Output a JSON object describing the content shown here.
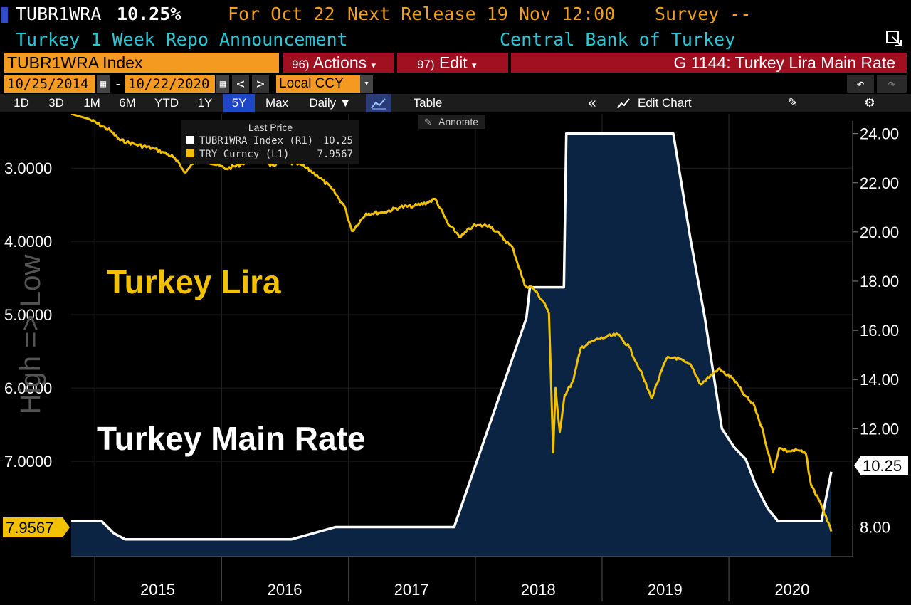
{
  "header": {
    "ticker": "TUBR1WRA",
    "price": "10.25%",
    "for_label": "For Oct 22",
    "next_release": "Next Release 19 Nov 12:00",
    "survey": "Survey --",
    "description": "Turkey 1 Week Repo Announcement",
    "source": "Central Bank of Turkey"
  },
  "command_bar": {
    "security": "TUBR1WRA Index",
    "actions_num": "96)",
    "actions": "Actions",
    "edit_num": "97)",
    "edit": "Edit",
    "graph_title": "G 1144: Turkey Lira Main Rate"
  },
  "date_bar": {
    "start": "10/25/2014",
    "dash": "-",
    "end": "10/22/2020",
    "currency": "Local CCY"
  },
  "range_bar": {
    "ranges": [
      "1D",
      "3D",
      "1M",
      "6M",
      "YTD",
      "1Y",
      "5Y",
      "Max"
    ],
    "selected": "5Y",
    "frequency": "Daily ▼",
    "table": "Table",
    "edit_chart": "Edit Chart"
  },
  "annotate": "Annotate",
  "colors": {
    "lira": "#f2c200",
    "rate": "#ffffff",
    "area": "#0c2444",
    "accent": "#f59a20",
    "command_red": "#a01020"
  },
  "chart_data": {
    "type": "line",
    "legend": {
      "title": "Last Price",
      "entries": [
        {
          "name": "TUBR1WRA Index (R1)",
          "value": "10.25"
        },
        {
          "name": "TRY Curncy (L1)",
          "value": "7.9567"
        }
      ],
      "placement": "top-left"
    },
    "annotations": [
      "Turkey Lira",
      "Turkey Main Rate"
    ],
    "left_axis_label": "High => Low",
    "left_axis": {
      "inverted": true,
      "range": [
        2.26,
        8.3
      ],
      "ticks": [
        "3.0000",
        "4.0000",
        "5.0000",
        "6.0000",
        "7.0000"
      ],
      "last_value_label": "7.9567"
    },
    "right_axis": {
      "range": [
        6.8,
        24.8
      ],
      "ticks": [
        "24.00",
        "22.00",
        "20.00",
        "18.00",
        "16.00",
        "14.00",
        "12.00",
        "8.00"
      ],
      "last_value_label": "10.25"
    },
    "x_labels": [
      "2015",
      "2016",
      "2017",
      "2018",
      "2019",
      "2020"
    ],
    "series": [
      {
        "name": "TUBR1WRA Index",
        "axis": "right",
        "style": "area-white-line",
        "points": [
          [
            "2014-10-25",
            8.25
          ],
          [
            "2015-01-20",
            8.25
          ],
          [
            "2015-02-25",
            7.75
          ],
          [
            "2015-03-30",
            7.5
          ],
          [
            "2016-07-20",
            7.5
          ],
          [
            "2016-11-24",
            8.0
          ],
          [
            "2017-11-01",
            8.0
          ],
          [
            "2018-05-28",
            16.5
          ],
          [
            "2018-06-07",
            17.75
          ],
          [
            "2018-09-13",
            17.75
          ],
          [
            "2018-09-20",
            24.0
          ],
          [
            "2019-07-25",
            24.0
          ],
          [
            "2019-09-12",
            19.75
          ],
          [
            "2019-10-24",
            16.5
          ],
          [
            "2019-12-12",
            12.0
          ],
          [
            "2020-01-16",
            11.25
          ],
          [
            "2020-02-19",
            10.75
          ],
          [
            "2020-03-17",
            9.75
          ],
          [
            "2020-04-22",
            8.75
          ],
          [
            "2020-05-21",
            8.25
          ],
          [
            "2020-09-24",
            8.25
          ],
          [
            "2020-10-22",
            10.25
          ]
        ]
      },
      {
        "name": "TRY Curncy",
        "axis": "left",
        "style": "line",
        "points": [
          [
            "2014-10-25",
            2.26
          ],
          [
            "2014-12-15",
            2.33
          ],
          [
            "2015-02-15",
            2.49
          ],
          [
            "2015-03-15",
            2.62
          ],
          [
            "2015-05-01",
            2.68
          ],
          [
            "2015-06-15",
            2.73
          ],
          [
            "2015-07-15",
            2.78
          ],
          [
            "2015-08-15",
            2.85
          ],
          [
            "2015-09-20",
            3.06
          ],
          [
            "2015-10-15",
            2.9
          ],
          [
            "2015-11-20",
            2.9
          ],
          [
            "2016-01-15",
            3.01
          ],
          [
            "2016-02-25",
            2.95
          ],
          [
            "2016-04-15",
            2.84
          ],
          [
            "2016-05-20",
            2.97
          ],
          [
            "2016-06-20",
            2.92
          ],
          [
            "2016-07-10",
            2.93
          ],
          [
            "2016-08-15",
            2.95
          ],
          [
            "2016-10-01",
            3.09
          ],
          [
            "2016-11-15",
            3.29
          ],
          [
            "2016-12-20",
            3.52
          ],
          [
            "2017-01-11",
            3.86
          ],
          [
            "2017-02-20",
            3.62
          ],
          [
            "2017-04-15",
            3.6
          ],
          [
            "2017-05-30",
            3.53
          ],
          [
            "2017-07-05",
            3.52
          ],
          [
            "2017-08-15",
            3.47
          ],
          [
            "2017-09-08",
            3.42
          ],
          [
            "2017-10-15",
            3.77
          ],
          [
            "2017-11-20",
            3.94
          ],
          [
            "2017-12-25",
            3.79
          ],
          [
            "2018-02-10",
            3.78
          ],
          [
            "2018-03-15",
            3.92
          ],
          [
            "2018-04-20",
            4.1
          ],
          [
            "2018-05-23",
            4.6
          ],
          [
            "2018-06-15",
            4.63
          ],
          [
            "2018-07-20",
            4.85
          ],
          [
            "2018-08-01",
            4.98
          ],
          [
            "2018-08-13",
            6.88
          ],
          [
            "2018-08-20",
            6.0
          ],
          [
            "2018-09-01",
            6.6
          ],
          [
            "2018-09-15",
            6.1
          ],
          [
            "2018-10-10",
            5.9
          ],
          [
            "2018-11-01",
            5.45
          ],
          [
            "2018-12-10",
            5.35
          ],
          [
            "2019-01-15",
            5.3
          ],
          [
            "2019-02-15",
            5.27
          ],
          [
            "2019-03-20",
            5.44
          ],
          [
            "2019-04-20",
            5.75
          ],
          [
            "2019-05-23",
            6.14
          ],
          [
            "2019-07-05",
            5.6
          ],
          [
            "2019-07-30",
            5.58
          ],
          [
            "2019-09-15",
            5.7
          ],
          [
            "2019-10-12",
            5.95
          ],
          [
            "2019-12-01",
            5.74
          ],
          [
            "2020-01-15",
            5.88
          ],
          [
            "2020-02-15",
            6.1
          ],
          [
            "2020-03-15",
            6.25
          ],
          [
            "2020-04-10",
            6.62
          ],
          [
            "2020-05-07",
            7.15
          ],
          [
            "2020-05-25",
            6.82
          ],
          [
            "2020-06-20",
            6.86
          ],
          [
            "2020-07-20",
            6.85
          ],
          [
            "2020-08-10",
            6.9
          ],
          [
            "2020-08-25",
            7.33
          ],
          [
            "2020-09-20",
            7.55
          ],
          [
            "2020-10-10",
            7.81
          ],
          [
            "2020-10-22",
            7.9567
          ]
        ]
      }
    ]
  }
}
